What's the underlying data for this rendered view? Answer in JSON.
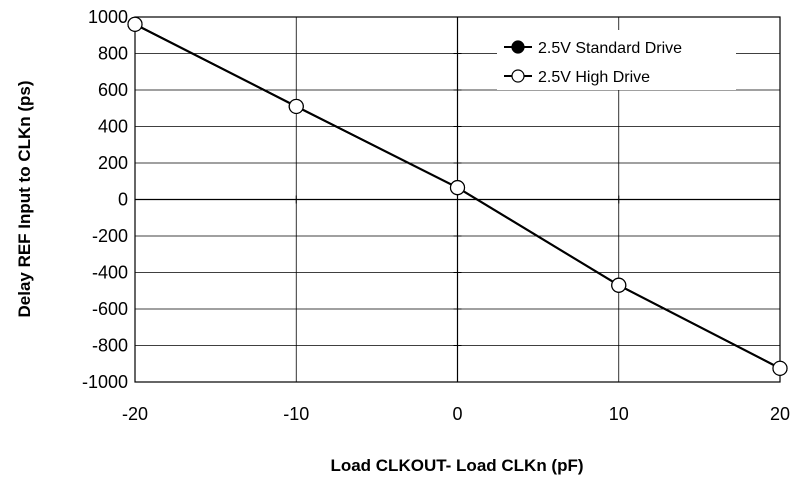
{
  "chart_data": {
    "type": "line",
    "xlabel": "Load CLKOUT- Load CLKn (pF)",
    "ylabel": "Delay REF Input to CLKn (ps)",
    "xlim": [
      -20,
      20
    ],
    "ylim": [
      -1000,
      1000
    ],
    "x_ticks": [
      -20,
      -10,
      0,
      10,
      20
    ],
    "y_ticks": [
      1000,
      800,
      600,
      400,
      200,
      0,
      -200,
      -400,
      -600,
      -800,
      -1000
    ],
    "x_tick_labels": [
      "-20",
      "-10",
      "0",
      "10",
      "20"
    ],
    "y_tick_labels": [
      "1000",
      "800",
      "600",
      "400",
      "200",
      "0",
      "-200",
      "-400",
      "-600",
      "-800",
      "-1000"
    ],
    "grid": true,
    "legend_position": "top-right",
    "series": [
      {
        "name": "2.5V Standard Drive",
        "marker": "filled-circle",
        "color": "#000000",
        "x": [
          -20,
          -10,
          0,
          10,
          20
        ],
        "y": [
          960,
          510,
          65,
          -470,
          -925
        ]
      },
      {
        "name": "2.5V High Drive",
        "marker": "open-circle",
        "color": "#000000",
        "x": [
          -20,
          -10,
          0,
          10,
          20
        ],
        "y": [
          960,
          510,
          65,
          -470,
          -925
        ]
      }
    ]
  }
}
